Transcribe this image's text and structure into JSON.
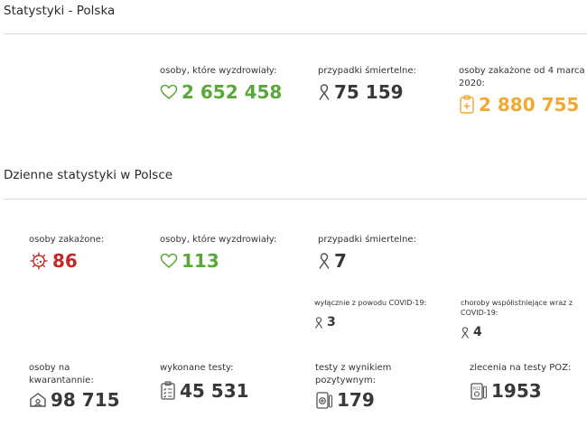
{
  "page": {
    "title": "Statystyki - Polska",
    "daily_title": "Dzienne statystyki w Polsce"
  },
  "totals": {
    "recovered": {
      "label": "osoby, które wyzdrowiały:",
      "value": "2 652 458",
      "icon": "heart-icon"
    },
    "deaths": {
      "label": "przypadki śmiertelne:",
      "value": "75 159",
      "icon": "ribbon-icon"
    },
    "infected": {
      "label": "osoby zakażone od 4 marca 2020:",
      "value": "2 880 755",
      "icon": "medical-clipboard-icon"
    }
  },
  "daily": {
    "infected": {
      "label": "osoby zakażone:",
      "value": "86",
      "icon": "virus-icon"
    },
    "recovered": {
      "label": "osoby, które wyzdrowiały:",
      "value": "113",
      "icon": "heart-icon"
    },
    "deaths": {
      "label": "przypadki śmiertelne:",
      "value": "7",
      "icon": "ribbon-icon"
    },
    "deaths_covid_only": {
      "label": "wyłącznie z powodu COVID-19:",
      "value": "3",
      "icon": "ribbon-icon"
    },
    "deaths_comorbid": {
      "label": "choroby współistniejące wraz z COVID-19:",
      "value": "4",
      "icon": "ribbon-icon"
    },
    "quarantine": {
      "label": "osoby na kwarantannie:",
      "value": "98 715",
      "icon": "house-icon"
    },
    "tests_done": {
      "label": "wykonane testy:",
      "value": "45 531",
      "icon": "checklist-icon"
    },
    "tests_positive": {
      "label": "testy z wynikiem pozytywnym:",
      "value": "179",
      "icon": "test-positive-icon"
    },
    "poz_orders": {
      "label": "zlecenia na testy POZ:",
      "value": "1953",
      "icon": "poz-test-icon"
    }
  },
  "colors": {
    "green": "#5aa83a",
    "orange": "#f0a932",
    "red": "#c62828",
    "dark": "#383838"
  }
}
